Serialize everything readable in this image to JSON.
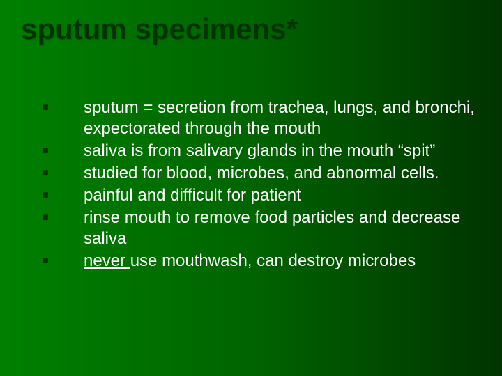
{
  "slide": {
    "title": "sputum specimens*",
    "title_color": "#003300",
    "title_fontsize": 42,
    "background_gradient": [
      "#008000",
      "#006400",
      "#003300"
    ],
    "bullet_marker": "■",
    "bullet_marker_color": "#003300",
    "text_color": "#ffffff",
    "text_fontsize": 24,
    "bullets": [
      {
        "text": "sputum = secretion from trachea, lungs, and bronchi, expectorated through the mouth"
      },
      {
        "text": "saliva is from salivary glands in the mouth “spit”"
      },
      {
        "text": "studied for blood, microbes, and abnormal cells."
      },
      {
        "text": "painful and difficult for patient"
      },
      {
        "text": "rinse mouth to remove food particles and decrease saliva"
      },
      {
        "underlined_prefix": "never ",
        "text": "use mouthwash, can destroy microbes"
      }
    ]
  }
}
